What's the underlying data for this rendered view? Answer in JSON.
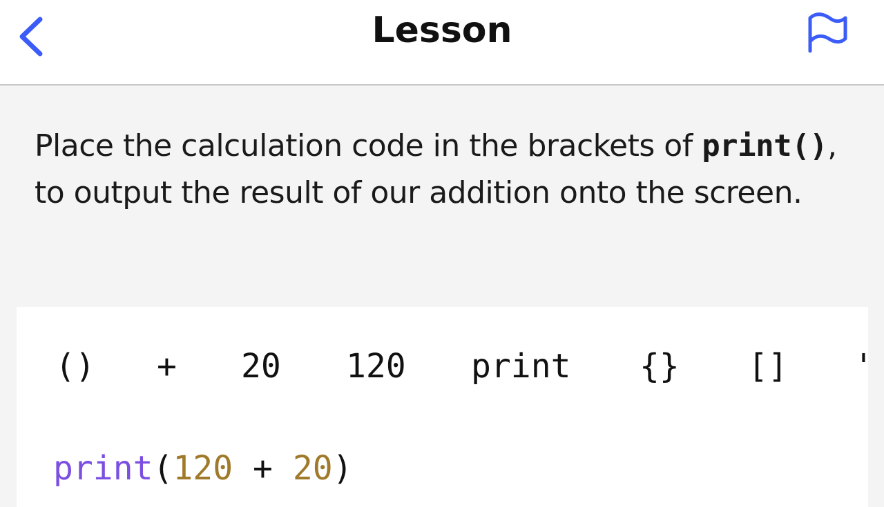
{
  "header": {
    "title": "Lesson",
    "back_icon": "chevron-left-icon",
    "flag_icon": "flag-icon",
    "accent": "#3b5cf6"
  },
  "instruction": {
    "part1": "Place the calculation code in the brackets of ",
    "code": "print()",
    "part2": ", to output the result of our addition onto the screen."
  },
  "tokens": [
    "()",
    "+",
    "20",
    "120",
    "print",
    "{}",
    "[]",
    "'"
  ],
  "answer": {
    "func": "print",
    "open": "(",
    "num1": "120",
    "op": " + ",
    "num2": "20",
    "close": ")",
    "colors": {
      "func": "#7b4fe0",
      "number": "#a07a2a"
    }
  }
}
